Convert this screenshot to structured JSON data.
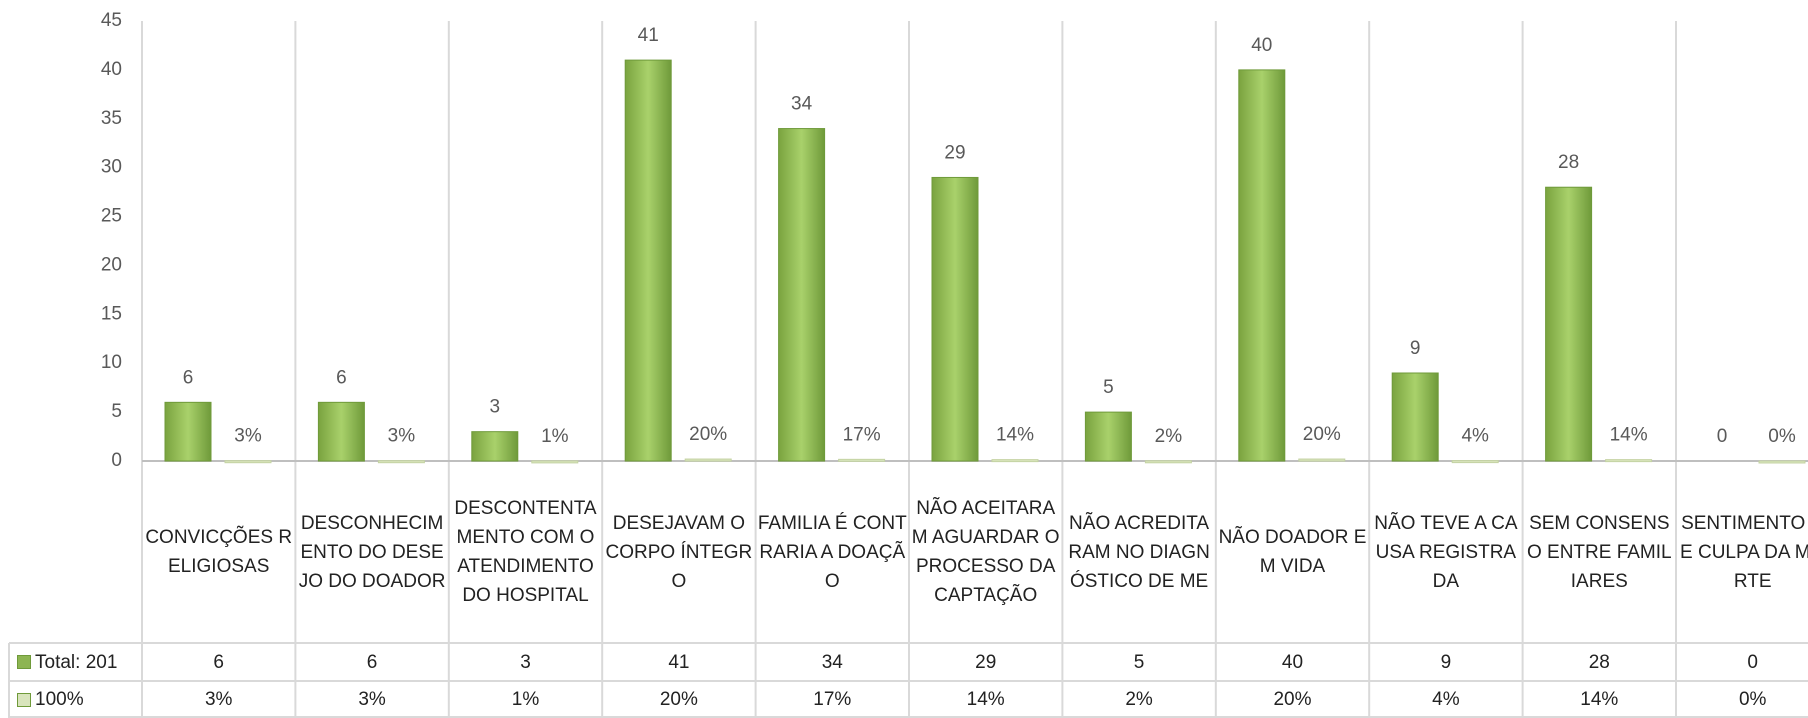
{
  "chart_data": {
    "type": "bar",
    "categories": [
      "CONVICÇÕES RELIGIOSAS",
      "DESCONHECIMENTO DO DESEJO DO DOADOR",
      "DESCONTENTAMENTO COM O ATENDIMENTO DO HOSPITAL",
      "DESEJAVAM O CORPO ÍNTEGRO",
      "FAMILIA É CONTRARIA A DOAÇÃO",
      "NÃO ACEITARAM AGUARDAR O PROCESSO DA CAPTAÇÃO",
      "NÃO ACREDITARAM NO DIAGNÓSTICO DE ME",
      "NÃO DOADOR EM VIDA",
      "NÃO TEVE A CAUSA REGISTRADA",
      "SEM CONSENSO ENTRE FAMILIARES",
      "SENTIMENTO DE CULPA DA MORTE"
    ],
    "series": [
      {
        "name": "Total: 201",
        "color": "#8db552",
        "values": [
          6,
          6,
          3,
          41,
          34,
          29,
          5,
          40,
          9,
          28,
          0
        ]
      },
      {
        "name": "100%",
        "color": "#d8e4bc",
        "values": [
          0.03,
          0.03,
          0.01,
          0.2,
          0.17,
          0.14,
          0.02,
          0.2,
          0.04,
          0.14,
          0
        ],
        "value_labels": [
          "3%",
          "3%",
          "1%",
          "20%",
          "17%",
          "14%",
          "2%",
          "20%",
          "4%",
          "14%",
          "0%"
        ]
      }
    ],
    "ylim": [
      0,
      45
    ],
    "yticks": [
      0,
      5,
      10,
      15,
      20,
      25,
      30,
      35,
      40,
      45
    ],
    "grid": false,
    "data_table": true
  }
}
